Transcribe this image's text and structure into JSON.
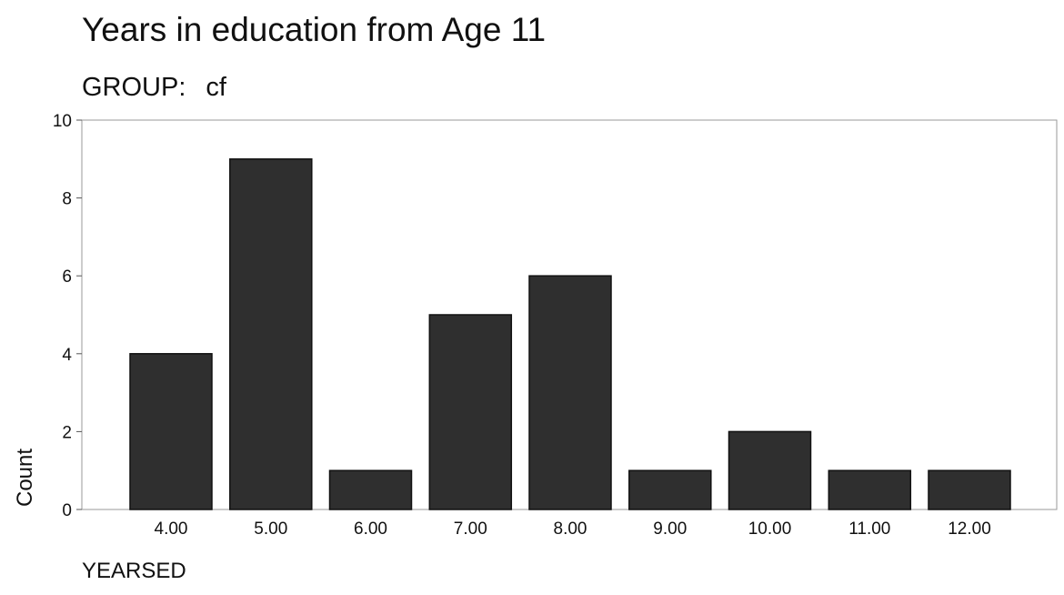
{
  "chart_data": {
    "type": "bar",
    "title": "Years in education from Age 11",
    "group_label": "GROUP:",
    "group_value": "cf",
    "xlabel": "YEARSED",
    "ylabel": "Count",
    "categories": [
      "4.00",
      "5.00",
      "6.00",
      "7.00",
      "8.00",
      "9.00",
      "10.00",
      "11.00",
      "12.00"
    ],
    "values": [
      4,
      9,
      1,
      5,
      6,
      1,
      2,
      1,
      1
    ],
    "ylim": [
      0,
      10
    ],
    "yticks": [
      "0",
      "2",
      "4",
      "6",
      "8",
      "10"
    ],
    "grid": false,
    "legend": "none",
    "bar_color": "#2f2f2f",
    "bar_edge_color": "#111111",
    "frame_color": "#9a9a9a"
  }
}
